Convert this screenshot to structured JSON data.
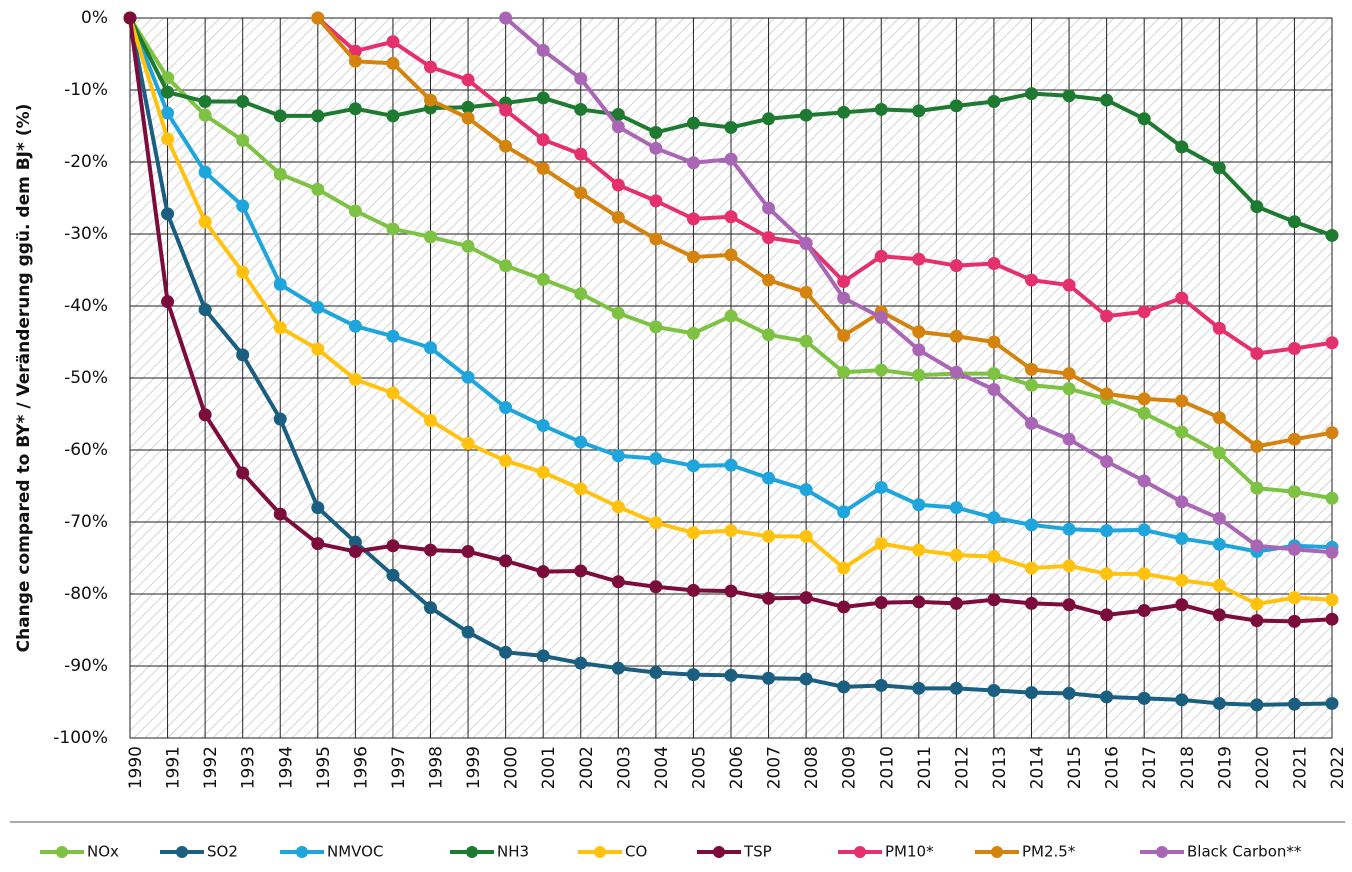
{
  "chart_data": {
    "type": "line",
    "y_label": "Change compared to BY* / Veränderung ggü. dem BJ* (%)",
    "categories": [
      "1990",
      "1991",
      "1992",
      "1993",
      "1994",
      "1995",
      "1996",
      "1997",
      "1998",
      "1999",
      "2000",
      "2001",
      "2002",
      "2003",
      "2004",
      "2005",
      "2006",
      "2007",
      "2008",
      "2009",
      "2010",
      "2011",
      "2012",
      "2013",
      "2014",
      "2015",
      "2016",
      "2017",
      "2018",
      "2019",
      "2020",
      "2021",
      "2022"
    ],
    "ylim": [
      -100,
      0
    ],
    "yticks": [
      {
        "value": 0,
        "label": "0%"
      },
      {
        "value": -10,
        "label": "-10%"
      },
      {
        "value": -20,
        "label": "-20%"
      },
      {
        "value": -30,
        "label": "-30%"
      },
      {
        "value": -40,
        "label": "-40%"
      },
      {
        "value": -50,
        "label": "-50%"
      },
      {
        "value": -60,
        "label": "-60%"
      },
      {
        "value": -70,
        "label": "-70%"
      },
      {
        "value": -80,
        "label": "-80%"
      },
      {
        "value": -90,
        "label": "-90%"
      },
      {
        "value": -100,
        "label": "-100%"
      }
    ],
    "grid": true,
    "legend": "bottom",
    "series": [
      {
        "name": "NOx",
        "color": "#7dc242",
        "values": [
          0,
          -8.3,
          -13.5,
          -17,
          -21.7,
          -23.8,
          -26.8,
          -29.3,
          -30.4,
          -31.7,
          -34.4,
          -36.3,
          -38.3,
          -41,
          -42.9,
          -43.8,
          -41.4,
          -44,
          -44.9,
          -49.2,
          -48.9,
          -49.6,
          -49.4,
          -49.4,
          -51,
          -51.5,
          -52.9,
          -54.9,
          -57.5,
          -60.4,
          -65.3,
          -65.8,
          -66.7
        ]
      },
      {
        "name": "SO2",
        "color": "#1a5e80",
        "values": [
          0,
          -27.2,
          -40.5,
          -46.8,
          -55.7,
          -68,
          -72.8,
          -77.4,
          -81.9,
          -85.3,
          -88.1,
          -88.6,
          -89.6,
          -90.3,
          -90.9,
          -91.2,
          -91.3,
          -91.7,
          -91.8,
          -92.9,
          -92.7,
          -93.1,
          -93.1,
          -93.4,
          -93.7,
          -93.8,
          -94.3,
          -94.5,
          -94.7,
          -95.2,
          -95.4,
          -95.3,
          -95.2
        ]
      },
      {
        "name": "NMVOC",
        "color": "#1ea5dc",
        "values": [
          0,
          -13.2,
          -21.4,
          -26.1,
          -37,
          -40.2,
          -42.8,
          -44.2,
          -45.8,
          -49.9,
          -54.1,
          -56.6,
          -58.9,
          -60.8,
          -61.2,
          -62.2,
          -62.1,
          -63.9,
          -65.5,
          -68.6,
          -65.2,
          -67.6,
          -68,
          -69.4,
          -70.4,
          -71,
          -71.2,
          -71.1,
          -72.3,
          -73.1,
          -74.1,
          -73.3,
          -73.5
        ]
      },
      {
        "name": "NH3",
        "color": "#1e7a30",
        "values": [
          0,
          -10.3,
          -11.6,
          -11.6,
          -13.6,
          -13.6,
          -12.6,
          -13.6,
          -12.5,
          -12.4,
          -11.8,
          -11.1,
          -12.7,
          -13.4,
          -15.9,
          -14.6,
          -15.2,
          -14,
          -13.5,
          -13.1,
          -12.7,
          -12.9,
          -12.2,
          -11.6,
          -10.5,
          -10.8,
          -11.4,
          -14,
          -17.9,
          -20.8,
          -26.2,
          -28.3,
          -30.2
        ]
      },
      {
        "name": "CO",
        "color": "#ffc20e",
        "values": [
          0,
          -16.8,
          -28.3,
          -35.3,
          -43,
          -46,
          -50.2,
          -52.1,
          -55.9,
          -59.1,
          -61.5,
          -63.1,
          -65.4,
          -67.9,
          -70.1,
          -71.5,
          -71.2,
          -72,
          -72,
          -76.4,
          -73,
          -73.9,
          -74.6,
          -74.8,
          -76.4,
          -76.1,
          -77.2,
          -77.2,
          -78.1,
          -78.8,
          -81.4,
          -80.5,
          -80.8
        ]
      },
      {
        "name": "TSP",
        "color": "#7b0c3c",
        "values": [
          0,
          -39.4,
          -55.1,
          -63.2,
          -68.9,
          -73,
          -74.1,
          -73.3,
          -73.9,
          -74.1,
          -75.4,
          -76.9,
          -76.8,
          -78.3,
          -79,
          -79.5,
          -79.6,
          -80.6,
          -80.5,
          -81.8,
          -81.2,
          -81.1,
          -81.3,
          -80.8,
          -81.3,
          -81.5,
          -82.9,
          -82.3,
          -81.5,
          -82.9,
          -83.7,
          -83.8,
          -83.5
        ]
      },
      {
        "name": "PM10*",
        "color": "#e5306e",
        "values": [
          null,
          null,
          null,
          null,
          null,
          0,
          -4.6,
          -3.3,
          -6.8,
          -8.6,
          -12.8,
          -16.9,
          -18.9,
          -23.2,
          -25.4,
          -27.9,
          -27.6,
          -30.5,
          -31.3,
          -36.6,
          -33.1,
          -33.5,
          -34.4,
          -34.1,
          -36.4,
          -37.1,
          -41.4,
          -40.8,
          -38.9,
          -43.1,
          -46.6,
          -45.9,
          -45.1
        ]
      },
      {
        "name": "PM2.5*",
        "color": "#d4840e",
        "values": [
          null,
          null,
          null,
          null,
          null,
          0,
          -6,
          -6.3,
          -11.4,
          -13.9,
          -17.8,
          -20.9,
          -24.3,
          -27.7,
          -30.7,
          -33.2,
          -32.9,
          -36.4,
          -38.1,
          -44.1,
          -40.8,
          -43.6,
          -44.2,
          -45,
          -48.8,
          -49.4,
          -52.2,
          -52.9,
          -53.2,
          -55.5,
          -59.5,
          -58.5,
          -57.6
        ]
      },
      {
        "name": "Black Carbon**",
        "color": "#a966b5",
        "values": [
          null,
          null,
          null,
          null,
          null,
          null,
          null,
          null,
          null,
          null,
          0,
          -4.5,
          -8.4,
          -15.1,
          -18.1,
          -20.1,
          -19.6,
          -26.4,
          -31.3,
          -38.9,
          -41.6,
          -46.1,
          -49.2,
          -51.6,
          -56.3,
          -58.5,
          -61.6,
          -64.3,
          -67.2,
          -69.5,
          -73.3,
          -73.8,
          -74.2
        ]
      }
    ]
  }
}
